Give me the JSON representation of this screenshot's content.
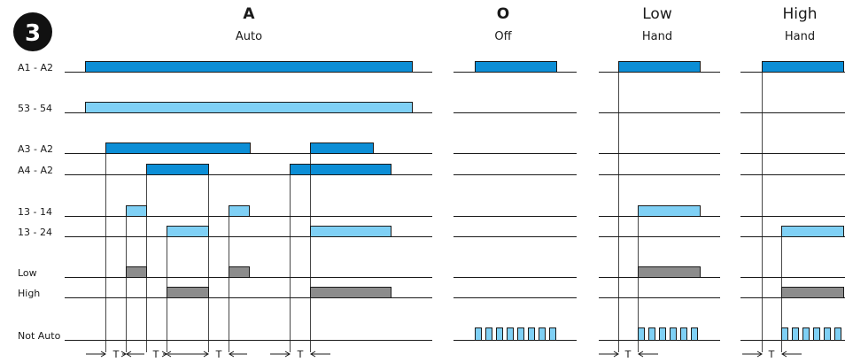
{
  "badge": "3",
  "colors": {
    "dark_blue": "#0c8ed6",
    "light_blue": "#7fd0f5",
    "gray": "#8c8c8c",
    "line": "#1a1a1a",
    "badge": "#111111"
  },
  "sections": [
    {
      "id": "auto",
      "title": "A",
      "subtitle": "Auto",
      "bold": true
    },
    {
      "id": "off",
      "title": "O",
      "subtitle": "Off",
      "bold": true
    },
    {
      "id": "low",
      "title": "Low",
      "subtitle": "Hand",
      "bold": false
    },
    {
      "id": "high",
      "title": "High",
      "subtitle": "Hand",
      "bold": false
    }
  ],
  "signals": [
    {
      "id": "a1a2",
      "label": "A1 - A2"
    },
    {
      "id": "5354",
      "label": "53 - 54"
    },
    {
      "id": "a3a2",
      "label": "A3 - A2"
    },
    {
      "id": "a4a2",
      "label": "A4 - A2"
    },
    {
      "id": "1314",
      "label": "13 - 14"
    },
    {
      "id": "1324",
      "label": "13 - 24"
    },
    {
      "id": "low",
      "label": "Low"
    },
    {
      "id": "high",
      "label": "High"
    },
    {
      "id": "notauto",
      "label": "Not Auto"
    }
  ],
  "time_label": "T"
}
